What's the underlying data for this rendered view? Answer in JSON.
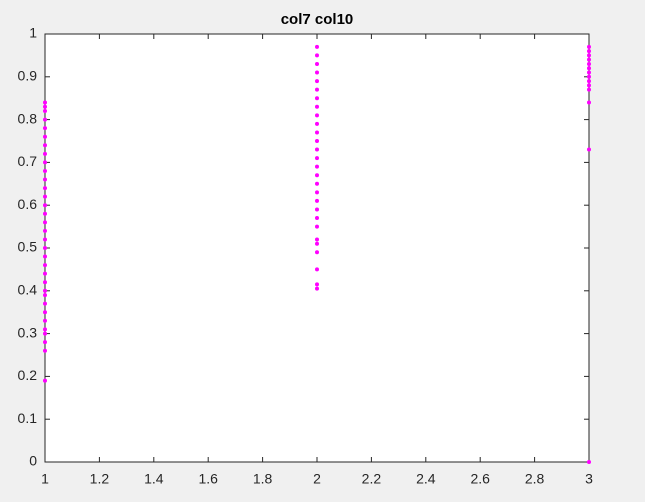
{
  "chart_data": {
    "type": "scatter",
    "title": "col7 col10",
    "color": "#ff00ff",
    "x": [
      1,
      1,
      1,
      1,
      1,
      1,
      1,
      1,
      1,
      1,
      1,
      1,
      1,
      1,
      1,
      1,
      1,
      1,
      1,
      1,
      1,
      1,
      1,
      1,
      1,
      1,
      1,
      1,
      1,
      1,
      1,
      1,
      1,
      2,
      2,
      2,
      2,
      2,
      2,
      2,
      2,
      2,
      2,
      2,
      2,
      2,
      2,
      2,
      2,
      2,
      2,
      2,
      2,
      2,
      2,
      2,
      2,
      2,
      2,
      2,
      2,
      3,
      3,
      3,
      3,
      3,
      3,
      3,
      3,
      3,
      3,
      3,
      3,
      3,
      3
    ],
    "values": [
      0.19,
      0.26,
      0.28,
      0.3,
      0.31,
      0.33,
      0.35,
      0.37,
      0.39,
      0.4,
      0.42,
      0.44,
      0.46,
      0.48,
      0.5,
      0.52,
      0.54,
      0.56,
      0.58,
      0.6,
      0.62,
      0.64,
      0.66,
      0.68,
      0.7,
      0.72,
      0.74,
      0.76,
      0.78,
      0.8,
      0.82,
      0.83,
      0.84,
      0.405,
      0.415,
      0.45,
      0.49,
      0.51,
      0.52,
      0.55,
      0.57,
      0.59,
      0.61,
      0.63,
      0.65,
      0.67,
      0.69,
      0.71,
      0.73,
      0.75,
      0.77,
      0.79,
      0.81,
      0.83,
      0.85,
      0.87,
      0.89,
      0.91,
      0.93,
      0.95,
      0.97,
      0,
      0.73,
      0.84,
      0.87,
      0.88,
      0.89,
      0.9,
      0.91,
      0.92,
      0.93,
      0.94,
      0.95,
      0.96,
      0.97
    ],
    "xlim": [
      1,
      3
    ],
    "xticks": [
      1,
      1.2,
      1.4,
      1.6,
      1.8,
      2,
      2.2,
      2.4,
      2.6,
      2.8,
      3
    ],
    "ylim": [
      0,
      1
    ],
    "yticks": [
      0,
      0.1,
      0.2,
      0.3,
      0.4,
      0.5,
      0.6,
      0.7,
      0.8,
      0.9,
      1
    ]
  }
}
